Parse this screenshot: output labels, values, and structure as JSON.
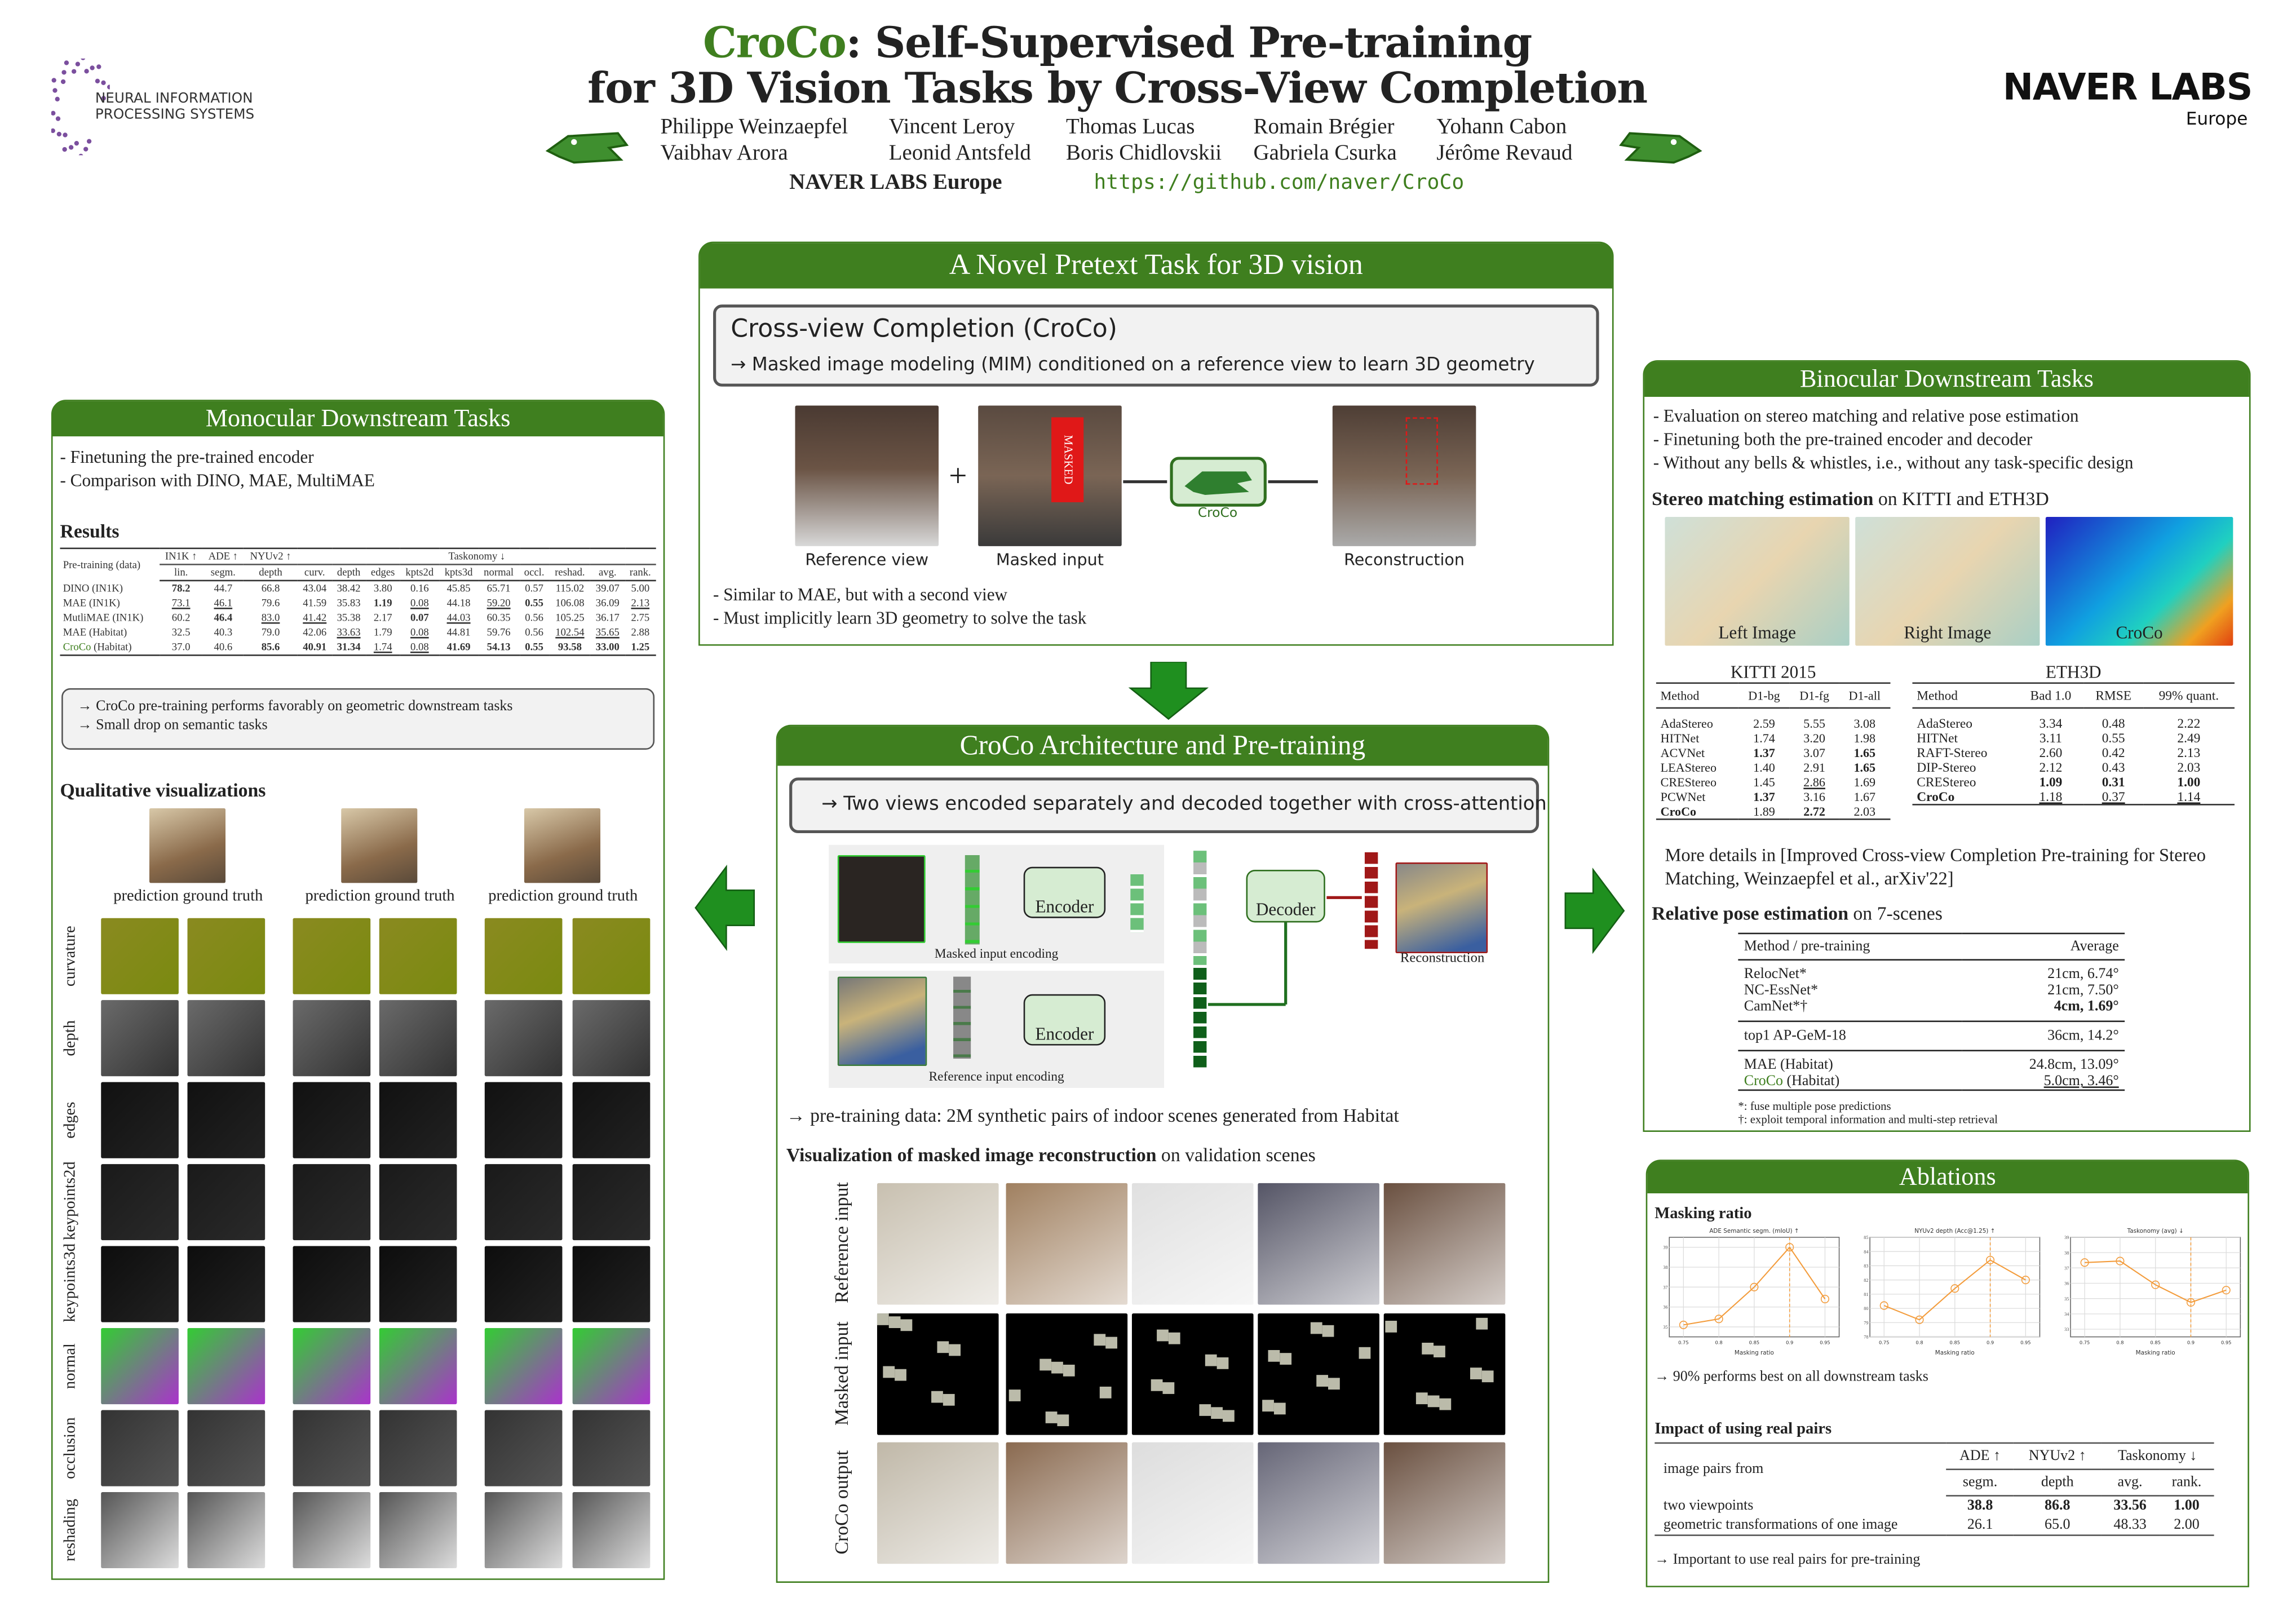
{
  "header": {
    "title_brand": "CroCo",
    "title_line1_rest": ": Self-Supervised Pre-training",
    "title_line2": "for 3D Vision Tasks by Cross-View Completion",
    "authors": [
      "Philippe Weinzaepfel",
      "Vincent Leroy",
      "Thomas Lucas",
      "Romain Brégier",
      "Yohann Cabon",
      "Vaibhav Arora",
      "Leonid Antsfeld",
      "Boris Chidlovskii",
      "Gabriela Csurka",
      "Jérôme Revaud"
    ],
    "affiliation": "NAVER LABS Europe",
    "url": "https://github.com/naver/CroCo",
    "left_logo": "NEURAL INFORMATION PROCESSING SYSTEMS",
    "right_logo_main": "NAVER LABS",
    "right_logo_sub": "Europe"
  },
  "pretext": {
    "heading": "A Novel Pretext Task for 3D vision",
    "box_title": "Cross-view Completion (CroCo)",
    "box_line": "→  Masked image modeling (MIM) conditioned on a reference view to learn 3D geometry",
    "plus": "+",
    "masked_tag": "MASKED",
    "croco_label": "CroCo",
    "captions": [
      "Reference view",
      "Masked input",
      "Reconstruction"
    ],
    "bullets": [
      "- Similar to MAE, but with a second view",
      "- Must implicitly learn 3D geometry to solve the task"
    ]
  },
  "architecture": {
    "heading": "CroCo Architecture and Pre-training",
    "box_line": "→ Two views encoded separately and decoded together with cross-attention",
    "encoder": "Encoder",
    "decoder": "Decoder",
    "masked_caption": "Masked input encoding",
    "reference_caption": "Reference input encoding",
    "reconstruction_caption": "Reconstruction",
    "pretraining_data": "→ pre-training data: 2M synthetic pairs of indoor scenes generated from Habitat",
    "vis_title_bold": "Visualization of masked image reconstruction",
    "vis_title_rest": " on validation scenes",
    "vis_rows": [
      "Reference input",
      "Masked input",
      "CroCo output"
    ]
  },
  "monocular": {
    "heading": "Monocular Downstream Tasks",
    "bullets": [
      "- Finetuning the pre-trained encoder",
      "- Comparison with DINO, MAE, MultiMAE"
    ],
    "results_title": "Results",
    "table": {
      "first_header": "Pre-training (data)",
      "groups": [
        "IN1K ↑",
        "ADE ↑",
        "NYUv2 ↑",
        "Taskonomy ↓"
      ],
      "subheaders": [
        "lin.",
        "segm.",
        "depth",
        "curv.",
        "depth",
        "edges",
        "kpts2d",
        "kpts3d",
        "normal",
        "occl.",
        "reshad.",
        "avg.",
        "rank."
      ],
      "rows": [
        {
          "name": "DINO (IN1K)",
          "cells": [
            "78.2",
            "44.7",
            "66.8",
            "43.04",
            "38.42",
            "3.80",
            "0.16",
            "45.85",
            "65.71",
            "0.57",
            "115.02",
            "39.07",
            "5.00"
          ],
          "bold": [
            0
          ],
          "under": []
        },
        {
          "name": "MAE (IN1K)",
          "cells": [
            "73.1",
            "46.1",
            "79.6",
            "41.59",
            "35.83",
            "1.19",
            "0.08",
            "44.18",
            "59.20",
            "0.55",
            "106.08",
            "36.09",
            "2.13"
          ],
          "bold": [
            5,
            9
          ],
          "under": [
            0,
            1,
            6,
            8,
            12
          ]
        },
        {
          "name": "MutliMAE (IN1K)",
          "cells": [
            "60.2",
            "46.4",
            "83.0",
            "41.42",
            "35.38",
            "2.17",
            "0.07",
            "44.03",
            "60.35",
            "0.56",
            "105.25",
            "36.17",
            "2.75"
          ],
          "bold": [
            1,
            6
          ],
          "under": [
            2,
            3,
            7
          ]
        },
        {
          "name": "MAE (Habitat)",
          "cells": [
            "32.5",
            "40.3",
            "79.0",
            "42.06",
            "33.63",
            "1.79",
            "0.08",
            "44.81",
            "59.76",
            "0.56",
            "102.54",
            "35.65",
            "2.88"
          ],
          "bold": [],
          "under": [
            4,
            6,
            10,
            11
          ]
        },
        {
          "name": "CroCo",
          "name_suffix": " (Habitat)",
          "cells": [
            "37.0",
            "40.6",
            "85.6",
            "40.91",
            "31.34",
            "1.74",
            "0.08",
            "41.69",
            "54.13",
            "0.55",
            "93.58",
            "33.00",
            "1.25"
          ],
          "bold": [
            2,
            3,
            4,
            7,
            8,
            9,
            10,
            11,
            12
          ],
          "under": [
            5,
            6
          ],
          "green": true
        }
      ]
    },
    "takeaways": [
      "→ CroCo pre-training performs favorably on geometric downstream tasks",
      "→ Small drop on semantic tasks"
    ],
    "qual_title": "Qualitative visualizations",
    "col_labels": [
      "prediction",
      "ground truth"
    ],
    "row_labels": [
      "curvature",
      "depth",
      "edges",
      "keypoints2d",
      "keypoints3d",
      "normal",
      "occlusion",
      "reshading"
    ]
  },
  "binocular": {
    "heading": "Binocular Downstream Tasks",
    "bullets": [
      "- Evaluation on stereo matching and relative pose estimation",
      "- Finetuning both the pre-trained encoder and decoder",
      "- Without any bells & whistles, i.e., without any task-specific design"
    ],
    "stereo_title_bold": "Stereo matching estimation",
    "stereo_title_rest": " on KITTI and ETH3D",
    "image_labels": [
      "Left Image",
      "Right Image",
      "CroCo"
    ],
    "kitti": {
      "title": "KITTI 2015",
      "headers": [
        "Method",
        "D1-bg",
        "D1-fg",
        "D1-all"
      ],
      "rows": [
        {
          "name": "AdaStereo",
          "cells": [
            "2.59",
            "5.55",
            "3.08"
          ],
          "bold": [],
          "under": []
        },
        {
          "name": "HITNet",
          "cells": [
            "1.74",
            "3.20",
            "1.98"
          ],
          "bold": [],
          "under": []
        },
        {
          "name": "ACVNet",
          "cells": [
            "1.37",
            "3.07",
            "1.65"
          ],
          "bold": [
            0,
            2
          ],
          "under": []
        },
        {
          "name": "LEAStereo",
          "cells": [
            "1.40",
            "2.91",
            "1.65"
          ],
          "bold": [
            2
          ],
          "under": []
        },
        {
          "name": "CREStereo",
          "cells": [
            "1.45",
            "2.86",
            "1.69"
          ],
          "bold": [],
          "under": [
            1
          ]
        },
        {
          "name": "PCWNet",
          "cells": [
            "1.37",
            "3.16",
            "1.67"
          ],
          "bold": [
            0
          ],
          "under": []
        },
        {
          "name": "CroCo",
          "cells": [
            "1.89",
            "2.72",
            "2.03"
          ],
          "bold": [
            1
          ],
          "under": [],
          "boldname": true
        }
      ]
    },
    "eth3d": {
      "title": "ETH3D",
      "headers": [
        "Method",
        "Bad 1.0",
        "RMSE",
        "99% quant."
      ],
      "rows": [
        {
          "name": "AdaStereo",
          "cells": [
            "3.34",
            "0.48",
            "2.22"
          ],
          "bold": [],
          "under": []
        },
        {
          "name": "HITNet",
          "cells": [
            "3.11",
            "0.55",
            "2.49"
          ],
          "bold": [],
          "under": []
        },
        {
          "name": "RAFT-Stereo",
          "cells": [
            "2.60",
            "0.42",
            "2.13"
          ],
          "bold": [],
          "under": []
        },
        {
          "name": "DIP-Stereo",
          "cells": [
            "2.12",
            "0.43",
            "2.03"
          ],
          "bold": [],
          "under": []
        },
        {
          "name": "CREStereo",
          "cells": [
            "1.09",
            "0.31",
            "1.00"
          ],
          "bold": [
            0,
            1,
            2
          ],
          "under": []
        },
        {
          "name": "CroCo",
          "cells": [
            "1.18",
            "0.37",
            "1.14"
          ],
          "bold": [],
          "under": [
            0,
            1,
            2
          ],
          "boldname": true
        }
      ]
    },
    "more_details": "More details in [Improved Cross-view Completion Pre-training for Stereo Matching, Weinzaepfel et al., arXiv'22]",
    "pose_title_bold": "Relative pose estimation",
    "pose_title_rest": " on 7-scenes",
    "pose": {
      "headers": [
        "Method / pre-training",
        "Average"
      ],
      "groups": [
        [
          {
            "name": "RelocNet*",
            "value": "21cm, 6.74°"
          },
          {
            "name": "NC-EssNet*",
            "value": "21cm, 7.50°"
          },
          {
            "name": "CamNet*†",
            "value": "4cm, 1.69°",
            "bold": true
          }
        ],
        [
          {
            "name": "top1 AP-GeM-18",
            "value": "36cm, 14.2°"
          }
        ],
        [
          {
            "name": "MAE (Habitat)",
            "value": "24.8cm, 13.09°"
          },
          {
            "name": "CroCo",
            "name_suffix": " (Habitat)",
            "value": "5.0cm, 3.46°",
            "green": true,
            "under": true
          }
        ]
      ],
      "footnotes": [
        "*: fuse multiple pose predictions",
        "†: exploit temporal information and multi-step retrieval"
      ]
    }
  },
  "ablations": {
    "heading": "Ablations",
    "masking_title": "Masking ratio",
    "masking_takeaway": "→ 90% performs best on all downstream tasks",
    "real_pairs_title": "Impact of using real pairs",
    "real_pairs": {
      "first_header": "image pairs from",
      "groups": [
        "ADE ↑",
        "NYUv2 ↑",
        "Taskonomy ↓"
      ],
      "subheaders": [
        "segm.",
        "depth",
        "avg.",
        "rank."
      ],
      "rows": [
        {
          "name": "two viewpoints",
          "cells": [
            "38.8",
            "86.8",
            "33.56",
            "1.00"
          ],
          "bold": [
            0,
            1,
            2,
            3
          ],
          "under": []
        },
        {
          "name": "geometric transformations of one image",
          "cells": [
            "26.1",
            "65.0",
            "48.33",
            "2.00"
          ],
          "bold": [],
          "under": []
        }
      ]
    },
    "real_pairs_takeaway": "→ Important to use real pairs for pre-training"
  },
  "chart_data": [
    {
      "type": "line",
      "title": "ADE Semantic segm. (mIoU) ↑",
      "xlabel": "Masking ratio",
      "ylabel": "",
      "x": [
        0.75,
        0.8,
        0.85,
        0.9,
        0.95
      ],
      "values": [
        35.1,
        35.4,
        37.0,
        39.0,
        36.4
      ],
      "xlim": [
        0.73,
        0.97
      ],
      "ylim": [
        34.5,
        39.5
      ],
      "yticks": [
        35,
        36,
        37,
        38,
        39
      ],
      "xticks": [
        "0.75",
        "0.8",
        "0.85",
        "0.9",
        "0.95"
      ],
      "best_x": 0.9,
      "grid": true,
      "color": "#f39c3c"
    },
    {
      "type": "line",
      "title": "NYUv2 depth (Acc@1.25) ↑",
      "xlabel": "Masking ratio",
      "ylabel": "",
      "x": [
        0.75,
        0.8,
        0.85,
        0.9,
        0.95
      ],
      "values": [
        80.2,
        79.2,
        81.4,
        83.4,
        82.0
      ],
      "xlim": [
        0.73,
        0.97
      ],
      "ylim": [
        78,
        85
      ],
      "yticks": [
        78,
        79,
        80,
        81,
        82,
        83,
        84,
        85
      ],
      "xticks": [
        "0.75",
        "0.8",
        "0.85",
        "0.9",
        "0.95"
      ],
      "best_x": 0.9,
      "grid": true,
      "color": "#f39c3c"
    },
    {
      "type": "line",
      "title": "Taskonomy (avg) ↓",
      "xlabel": "Masking ratio",
      "ylabel": "",
      "x": [
        0.75,
        0.8,
        0.85,
        0.9,
        0.95
      ],
      "values": [
        37.35,
        37.45,
        35.9,
        34.75,
        35.55
      ],
      "xlim": [
        0.73,
        0.97
      ],
      "ylim": [
        32.5,
        39
      ],
      "yticks": [
        33,
        34,
        35,
        36,
        37,
        38,
        39
      ],
      "xticks": [
        "0.75",
        "0.8",
        "0.85",
        "0.9",
        "0.95"
      ],
      "best_x": 0.9,
      "grid": true,
      "color": "#f39c3c"
    }
  ],
  "colors": {
    "accent": "#3f7f1f",
    "recon_red": "#a01818",
    "chart_orange": "#f39c3c",
    "neurips_purple": "#7b4f9e"
  }
}
